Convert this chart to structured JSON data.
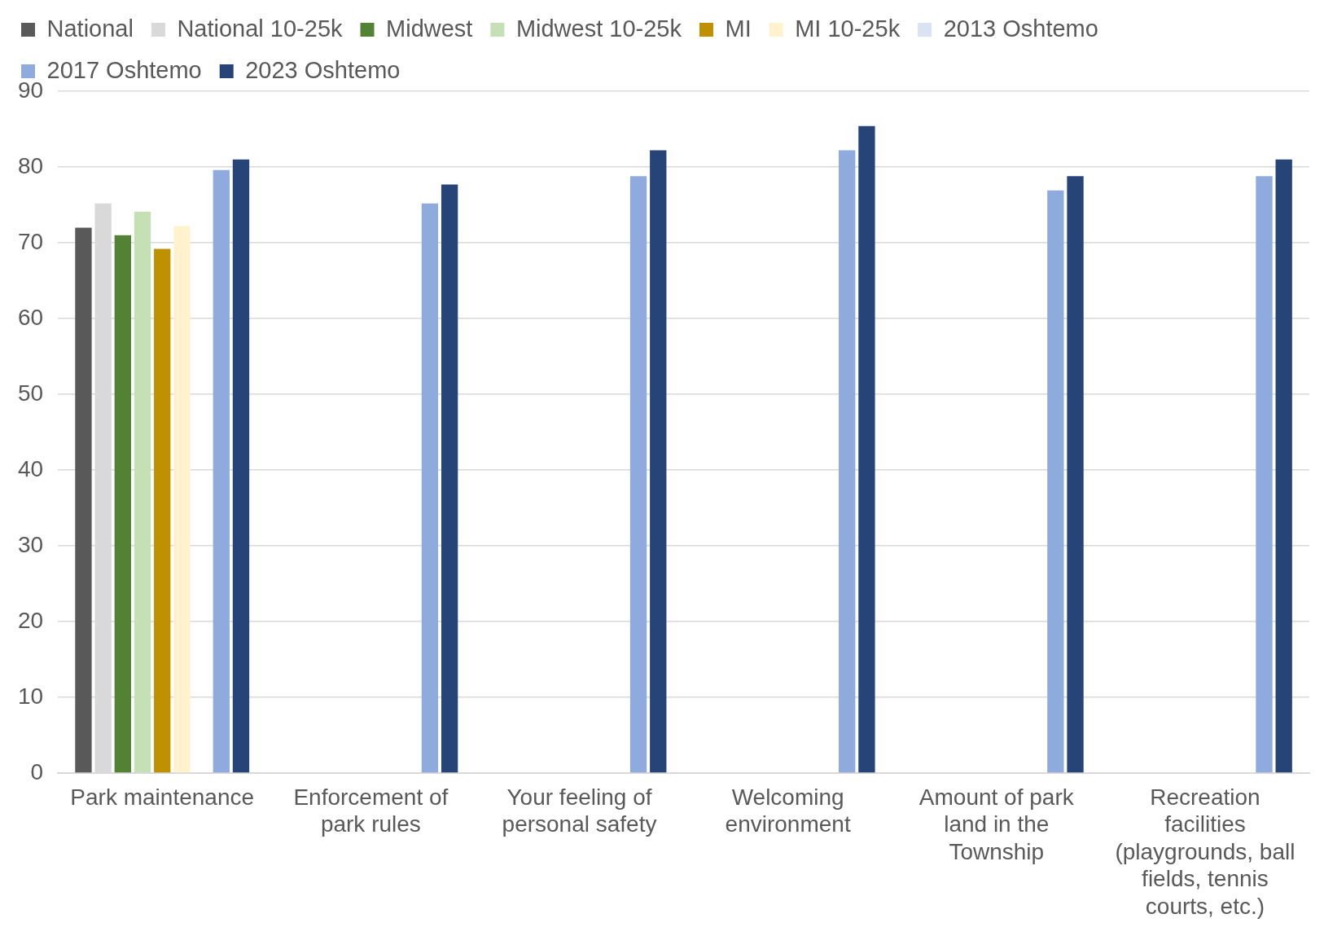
{
  "chart_data": {
    "type": "bar",
    "categories": [
      "Park maintenance",
      "Enforcement of park rules",
      "Your feeling of personal safety",
      "Welcoming environment",
      "Amount of park land in the Township",
      "Recreation facilities (playgrounds, ball fields, tennis courts, etc.)"
    ],
    "series": [
      {
        "name": "National",
        "color": "#595959",
        "values": [
          72,
          null,
          null,
          null,
          null,
          null
        ]
      },
      {
        "name": "National 10-25k",
        "color": "#d9d9d9",
        "values": [
          75.2,
          null,
          null,
          null,
          null,
          null
        ]
      },
      {
        "name": "Midwest",
        "color": "#548235",
        "values": [
          71,
          null,
          null,
          null,
          null,
          null
        ]
      },
      {
        "name": "Midwest 10-25k",
        "color": "#c5e0b4",
        "values": [
          74.1,
          null,
          null,
          null,
          null,
          null
        ]
      },
      {
        "name": "MI",
        "color": "#bf9000",
        "values": [
          69.2,
          null,
          null,
          null,
          null,
          null
        ]
      },
      {
        "name": "MI 10-25k",
        "color": "#fff2cc",
        "values": [
          72.2,
          null,
          null,
          null,
          null,
          null
        ]
      },
      {
        "name": "2013 Oshtemo",
        "color": "#dae3f3",
        "values": [
          null,
          null,
          null,
          null,
          null,
          null
        ]
      },
      {
        "name": "2017 Oshtemo",
        "color": "#8faadc",
        "values": [
          79.6,
          75.2,
          78.8,
          82.2,
          76.9,
          78.8
        ]
      },
      {
        "name": "2023 Oshtemo",
        "color": "#264478",
        "values": [
          81,
          77.7,
          82.2,
          85.4,
          78.8,
          81
        ]
      }
    ],
    "ylim": [
      0,
      90
    ],
    "yticks": [
      0,
      10,
      20,
      30,
      40,
      50,
      60,
      70,
      80,
      90
    ],
    "grid": "y",
    "legend": "top left"
  }
}
